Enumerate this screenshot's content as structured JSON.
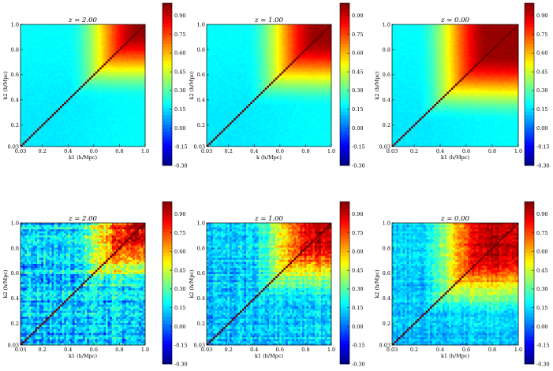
{
  "chart_data": [
    {
      "type": "heatmap",
      "title": "z = 2.00",
      "xlabel": "k1 (h/Mpc)",
      "ylabel": "k2 (h/Mpc)",
      "xlim": [
        0.03,
        1.0
      ],
      "ylim": [
        0.03,
        1.0
      ],
      "xticks": [
        "0.03",
        "0.2",
        "0.4",
        "0.6",
        "0.8",
        "1.0"
      ],
      "yticks": [
        "0.03",
        "0.2",
        "0.4",
        "0.6",
        "0.8",
        "1.0"
      ],
      "onset": 0.4,
      "noise": 0.02,
      "field": "smooth",
      "colorbar": {
        "range": [
          -0.3,
          1.0
        ],
        "ticks": [
          "0.90",
          "0.75",
          "0.60",
          "0.45",
          "0.30",
          "0.15",
          "0.00",
          "-0.15",
          "-0.30"
        ]
      }
    },
    {
      "type": "heatmap",
      "title": "z = 1.00",
      "xlabel": "k (h/Mpc)",
      "ylabel": "k2 (h/Mpc)",
      "xlim": [
        0.03,
        1.0
      ],
      "ylim": [
        0.03,
        1.0
      ],
      "xticks": [
        "0.03",
        "0.2",
        "0.4",
        "0.6",
        "0.8",
        "1.0"
      ],
      "yticks": [
        "0.03",
        "0.2",
        "0.4",
        "0.6",
        "0.8",
        "1.0"
      ],
      "onset": 0.34,
      "noise": 0.02,
      "field": "smooth",
      "colorbar": {
        "range": [
          -0.3,
          1.0
        ],
        "ticks": [
          "0.90",
          "0.75",
          "0.60",
          "0.45",
          "0.30",
          "0.15",
          "0.00",
          "-0.15",
          "-0.30"
        ]
      }
    },
    {
      "type": "heatmap",
      "title": "z = 0.00",
      "xlabel": "k1 (h/Mpc)",
      "ylabel": "k2 (h/Mpc)",
      "xlim": [
        0.03,
        1.0
      ],
      "ylim": [
        0.03,
        1.0
      ],
      "xticks": [
        "0.03",
        "0.2",
        "0.4",
        "0.6",
        "0.8",
        "1.0"
      ],
      "yticks": [
        "0.03",
        "0.2",
        "0.4",
        "0.6",
        "0.8",
        "1.0"
      ],
      "onset": 0.22,
      "noise": 0.02,
      "field": "smooth",
      "colorbar": {
        "range": [
          -0.3,
          1.0
        ],
        "ticks": [
          "0.90",
          "0.75",
          "0.60",
          "0.45",
          "0.30",
          "0.15",
          "0.00",
          "-0.15",
          "-0.30"
        ]
      }
    },
    {
      "type": "heatmap",
      "title": "z = 2.00",
      "xlabel": "k1 (h/Mpc)",
      "ylabel": "k2 (h/Mpc)",
      "xlim": [
        0.03,
        1.0
      ],
      "ylim": [
        0.03,
        1.0
      ],
      "xticks": [
        "0.03",
        "0.2",
        "0.4",
        "0.6",
        "0.8",
        "1.0"
      ],
      "yticks": [
        "0.03",
        "0.2",
        "0.4",
        "0.6",
        "0.8",
        "1.0"
      ],
      "onset": 0.4,
      "noise": 0.22,
      "field": "noisy",
      "colorbar": {
        "range": [
          -0.3,
          1.0
        ],
        "ticks": [
          "0.90",
          "0.75",
          "0.60",
          "0.45",
          "0.30",
          "0.15",
          "0.00",
          "-0.15",
          "-0.30"
        ]
      }
    },
    {
      "type": "heatmap",
      "title": "z = 1.00",
      "xlabel": "k1 (h/Mpc)",
      "ylabel": "k2 (h/Mpc)",
      "xlim": [
        0.03,
        1.0
      ],
      "ylim": [
        0.03,
        1.0
      ],
      "xticks": [
        "0.03",
        "0.2",
        "0.4",
        "0.6",
        "0.8",
        "1.0"
      ],
      "yticks": [
        "0.03",
        "0.2",
        "0.4",
        "0.6",
        "0.8",
        "1.0"
      ],
      "onset": 0.34,
      "noise": 0.16,
      "field": "noisy",
      "colorbar": {
        "range": [
          -0.3,
          1.0
        ],
        "ticks": [
          "0.90",
          "0.75",
          "0.60",
          "0.45",
          "0.30",
          "0.15",
          "0.00",
          "-0.15",
          "-0.30"
        ]
      }
    },
    {
      "type": "heatmap",
      "title": "z = 0.00",
      "xlabel": "k1 (h/Mpc)",
      "ylabel": "k2 (h/Mpc)",
      "xlim": [
        0.03,
        1.0
      ],
      "ylim": [
        0.03,
        1.0
      ],
      "xticks": [
        "0.03",
        "0.2",
        "0.4",
        "0.6",
        "0.8",
        "1.0"
      ],
      "yticks": [
        "0.03",
        "0.2",
        "0.4",
        "0.6",
        "0.8",
        "1.0"
      ],
      "onset": 0.22,
      "noise": 0.12,
      "field": "noisy",
      "colorbar": {
        "range": [
          -0.3,
          1.0
        ],
        "ticks": [
          "0.90",
          "0.75",
          "0.60",
          "0.45",
          "0.30",
          "0.15",
          "0.00",
          "-0.15",
          "-0.30"
        ]
      }
    }
  ],
  "colormap": {
    "name": "jet",
    "stops": [
      "#00007f",
      "#0000ff",
      "#007fff",
      "#00ffff",
      "#7fff7f",
      "#ffff00",
      "#ff7f00",
      "#ff0000",
      "#7f0000"
    ]
  },
  "diagonal_color": "#000000"
}
